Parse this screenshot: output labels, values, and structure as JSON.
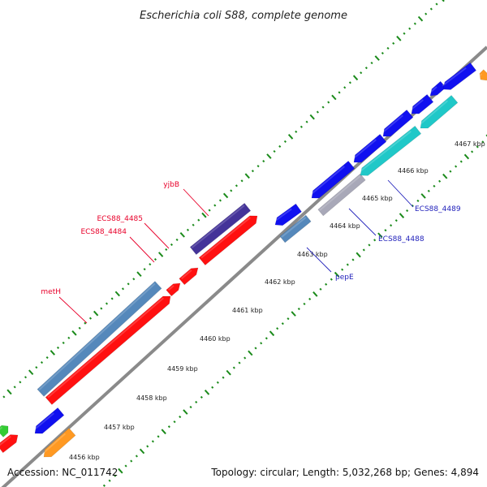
{
  "header": {
    "title": "Escherichia coli S88, complete genome"
  },
  "footer": {
    "accession": "Accession: NC_011742",
    "summary": "Topology: circular; Length: 5,032,268 bp; Genes: 4,894"
  },
  "axis": {
    "ticks": [
      {
        "label": "4456 kbp"
      },
      {
        "label": "4457 kbp"
      },
      {
        "label": "4458 kbp"
      },
      {
        "label": "4459 kbp"
      },
      {
        "label": "4460 kbp"
      },
      {
        "label": "4461 kbp"
      },
      {
        "label": "4462 kbp"
      },
      {
        "label": "4463 kbp"
      },
      {
        "label": "4464 kbp"
      },
      {
        "label": "4465 kbp"
      },
      {
        "label": "4466 kbp"
      },
      {
        "label": "4467 kbp"
      }
    ]
  },
  "genes": {
    "forward": [
      {
        "name": "metH",
        "color": "#e8002a"
      },
      {
        "name": "ECS88_4484",
        "color": "#e8002a"
      },
      {
        "name": "ECS88_4485",
        "color": "#e8002a"
      },
      {
        "name": "yjbB",
        "color": "#e8002a"
      }
    ],
    "reverse": [
      {
        "name": "pepE",
        "color": "#2222bb"
      },
      {
        "name": "ECS88_4488",
        "color": "#2222bb"
      },
      {
        "name": "ECS88_4489",
        "color": "#2222bb"
      }
    ]
  },
  "colors": {
    "backbone": "#8a8a8a",
    "tick_green": "#1a8a1a",
    "cds_red": "#ff1010",
    "cds_blue": "#1010f0",
    "cds_steelblue": "#5588bb",
    "cds_purple": "#443399",
    "cds_cyan": "#20c8c8",
    "cds_orange": "#ff9922",
    "cds_green": "#33cc33",
    "cds_gray": "#a8a8b8"
  }
}
